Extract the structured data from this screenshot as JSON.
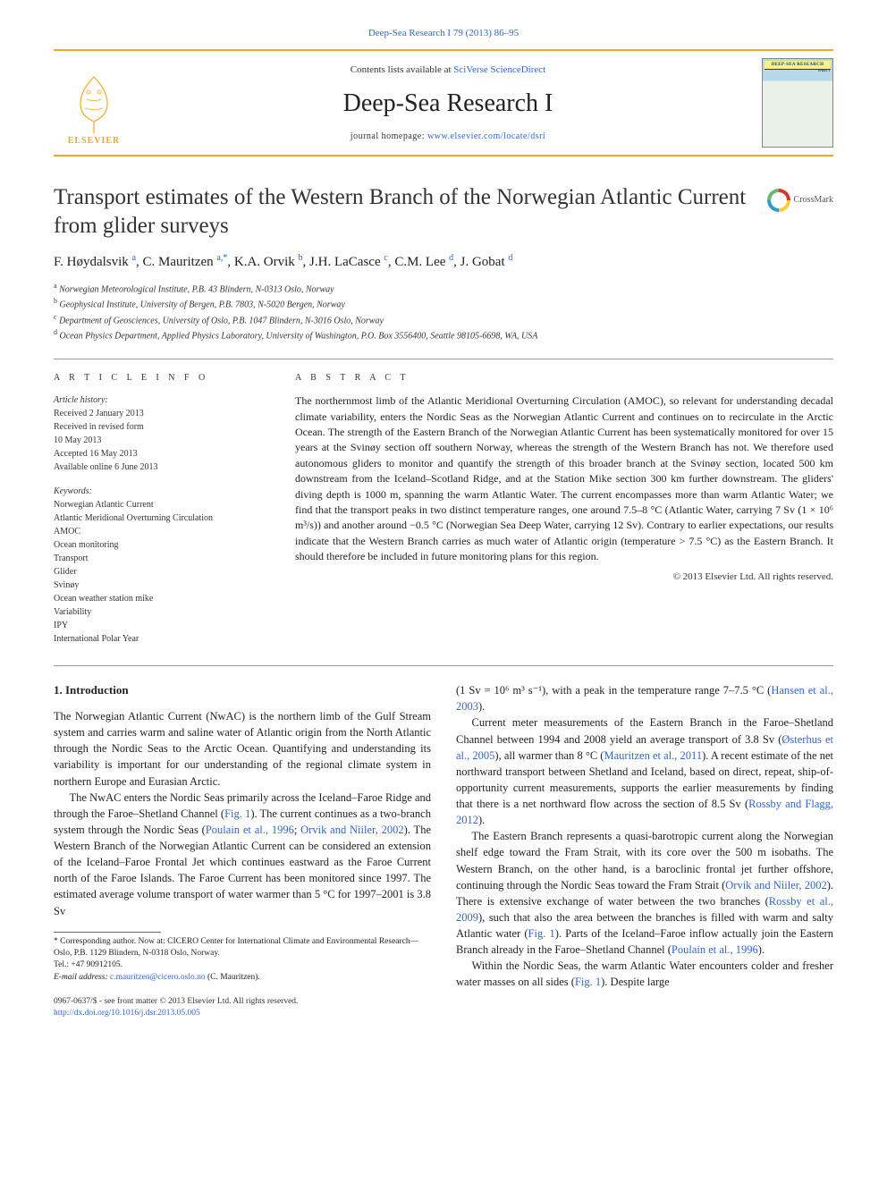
{
  "banner": "Deep-Sea Research I 79 (2013) 86–95",
  "masthead": {
    "contents_prefix": "Contents lists available at ",
    "contents_link": "SciVerse ScienceDirect",
    "journal": "Deep-Sea Research I",
    "homepage_prefix": "journal homepage: ",
    "homepage_link": "www.elsevier.com/locate/dsri",
    "publisher_logo_text": "ELSEVIER",
    "cover_label": "DEEP-SEA RESEARCH",
    "cover_sub": "PART I"
  },
  "crossmark_label": "CrossMark",
  "title": "Transport estimates of the Western Branch of the Norwegian Atlantic Current from glider surveys",
  "authors_html": "F. Høydalsvik <sup>a</sup>, C. Mauritzen <sup>a,<span class=\"star-sup\">*</span></sup>, K.A. Orvik <sup>b</sup>, J.H. LaCasce <sup>c</sup>, C.M. Lee <sup>d</sup>, J. Gobat <sup>d</sup>",
  "affiliations": [
    {
      "sup": "a",
      "text": "Norwegian Meteorological Institute, P.B. 43 Blindern, N-0313 Oslo, Norway"
    },
    {
      "sup": "b",
      "text": "Geophysical Institute, University of Bergen, P.B. 7803, N-5020 Bergen, Norway"
    },
    {
      "sup": "c",
      "text": "Department of Geosciences, University of Oslo, P.B. 1047 Blindern, N-3016 Oslo, Norway"
    },
    {
      "sup": "d",
      "text": "Ocean Physics Department, Applied Physics Laboratory, University of Washington, P.O. Box 3556400, Seattle 98105-6698, WA, USA"
    }
  ],
  "info": {
    "label": "A R T I C L E   I N F O",
    "history_label": "Article history:",
    "history": [
      "Received 2 January 2013",
      "Received in revised form",
      "10 May 2013",
      "Accepted 16 May 2013",
      "Available online 6 June 2013"
    ],
    "keywords_label": "Keywords:",
    "keywords": [
      "Norwegian Atlantic Current",
      "Atlantic Meridional Overturning Circulation",
      "AMOC",
      "Ocean monitoring",
      "Transport",
      "Glider",
      "Svinøy",
      "Ocean weather station mike",
      "Variability",
      "IPY",
      "International Polar Year"
    ]
  },
  "abstract": {
    "label": "A B S T R A C T",
    "text": "The northernmost limb of the Atlantic Meridional Overturning Circulation (AMOC), so relevant for understanding decadal climate variability, enters the Nordic Seas as the Norwegian Atlantic Current and continues on to recirculate in the Arctic Ocean. The strength of the Eastern Branch of the Norwegian Atlantic Current has been systematically monitored for over 15 years at the Svinøy section off southern Norway, whereas the strength of the Western Branch has not. We therefore used autonomous gliders to monitor and quantify the strength of this broader branch at the Svinøy section, located 500 km downstream from the Iceland–Scotland Ridge, and at the Station Mike section 300 km further downstream. The gliders' diving depth is 1000 m, spanning the warm Atlantic Water. The current encompasses more than warm Atlantic Water; we find that the transport peaks in two distinct temperature ranges, one around 7.5–8 °C (Atlantic Water, carrying 7 Sv (1 × 10⁶ m³/s)) and another around −0.5 °C (Norwegian Sea Deep Water, carrying 12 Sv). Contrary to earlier expectations, our results indicate that the Western Branch carries as much water of Atlantic origin (temperature > 7.5 °C) as the Eastern Branch. It should therefore be included in future monitoring plans for this region.",
    "copyright": "© 2013 Elsevier Ltd. All rights reserved."
  },
  "section1_heading": "1.  Introduction",
  "paragraphs_left": [
    "The Norwegian Atlantic Current (NwAC) is the northern limb of the Gulf Stream system and carries warm and saline water of Atlantic origin from the North Atlantic through the Nordic Seas to the Arctic Ocean. Quantifying and understanding its variability is important for our understanding of the regional climate system in northern Europe and Eurasian Arctic.",
    "The NwAC enters the Nordic Seas primarily across the Iceland–Faroe Ridge and through the Faroe–Shetland Channel (<a>Fig. 1</a>). The current continues as a two-branch system through the Nordic Seas (<a>Poulain et al., 1996</a>; <a>Orvik and Niiler, 2002</a>). The Western Branch of the Norwegian Atlantic Current can be considered an extension of the Iceland–Faroe Frontal Jet which continues eastward as the Faroe Current north of the Faroe Islands. The Faroe Current has been monitored since 1997. The estimated average volume transport of water warmer than 5 °C for 1997–2001 is 3.8 Sv"
  ],
  "paragraphs_right": [
    "(1 Sv = 10⁶ m³ s⁻¹), with a peak in the temperature range 7–7.5 °C (<a>Hansen et al., 2003</a>).",
    "Current meter measurements of the Eastern Branch in the Faroe–Shetland Channel between 1994 and 2008 yield an average transport of 3.8 Sv (<a>Østerhus et al., 2005</a>), all warmer than 8 °C (<a>Mauritzen et al., 2011</a>). A recent estimate of the net northward transport between Shetland and Iceland, based on direct, repeat, ship-of-opportunity current measurements, supports the earlier measurements by finding that there is a net northward flow across the section of 8.5 Sv (<a>Rossby and Flagg, 2012</a>).",
    "The Eastern Branch represents a quasi-barotropic current along the Norwegian shelf edge toward the Fram Strait, with its core over the 500 m isobaths. The Western Branch, on the other hand, is a baroclinic frontal jet further offshore, continuing through the Nordic Seas toward the Fram Strait (<a>Orvik and Niiler, 2002</a>). There is extensive exchange of water between the two branches (<a>Rossby et al., 2009</a>), such that also the area between the branches is filled with warm and salty Atlantic water (<a>Fig. 1</a>). Parts of the Iceland–Faroe inflow actually join the Eastern Branch already in the Faroe–Shetland Channel (<a>Poulain et al., 1996</a>).",
    "Within the Nordic Seas, the warm Atlantic Water encounters colder and fresher water masses on all sides (<a>Fig. 1</a>). Despite large"
  ],
  "footnote": {
    "corr_prefix": "* Corresponding author. Now at: CICERO Center for International Climate and Environmental Research—Oslo, P.B. 1129 Blindern, N-0318 Oslo, Norway.",
    "tel": "Tel.: +47 90912105.",
    "email_label": "E-mail address: ",
    "email": "c.mauritzen@cicero.oslo.no",
    "email_suffix": " (C. Mauritzen)."
  },
  "bottom": {
    "issn_line": "0967-0637/$ - see front matter © 2013 Elsevier Ltd. All rights reserved.",
    "doi": "http://dx.doi.org/10.1016/j.dsr.2013.05.005"
  }
}
